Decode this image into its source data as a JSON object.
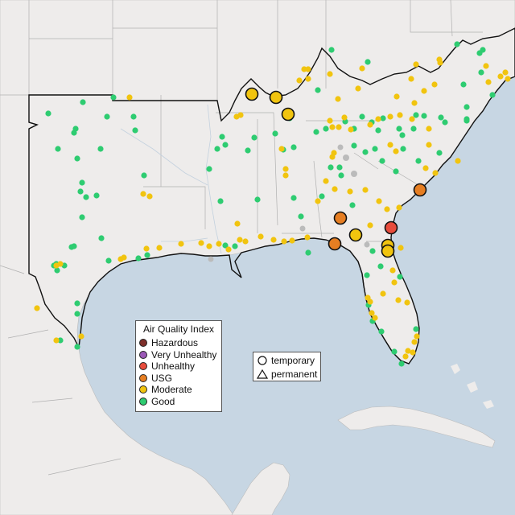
{
  "legend": {
    "title": "Air Quality Index",
    "categories": [
      {
        "label": "Hazardous",
        "color": "#7e2f2a"
      },
      {
        "label": "Very Unhealthy",
        "color": "#9b59b6"
      },
      {
        "label": "Unhealthy",
        "color": "#e74c3c"
      },
      {
        "label": "USG",
        "color": "#e67e22"
      },
      {
        "label": "Moderate",
        "color": "#f1c40f"
      },
      {
        "label": "Good",
        "color": "#2ecc71"
      }
    ]
  },
  "shape_legend": {
    "temporary": "temporary",
    "permanent": "permanent"
  },
  "colors": {
    "water": "#c7d6e3",
    "land": "#eeeceb",
    "border": "#111111",
    "nodata": "#bbbbbb"
  }
}
